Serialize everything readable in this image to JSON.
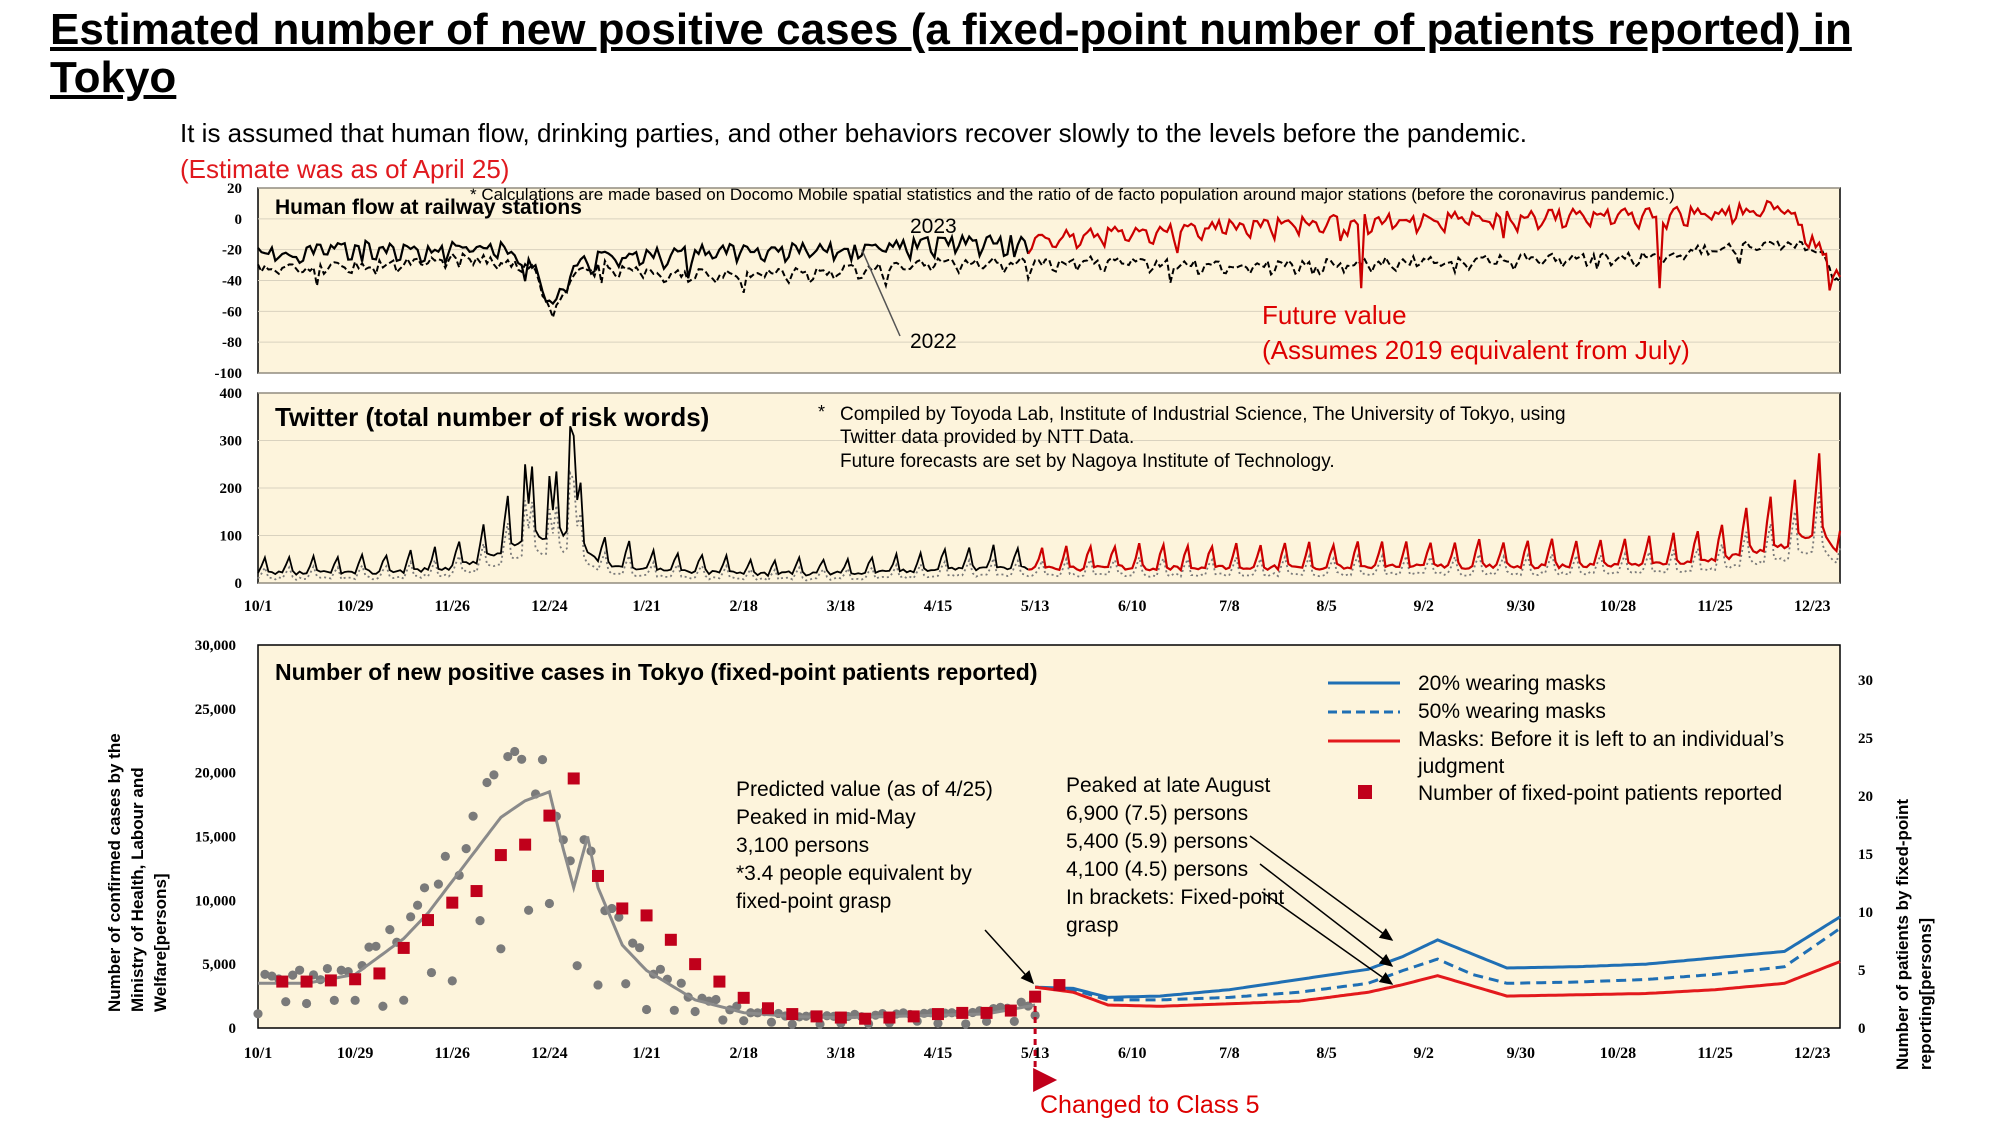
{
  "title": "Estimated number of new positive cases (a fixed-point number of patients reported) in Tokyo",
  "subtitle": "It is assumed that human flow, drinking parties, and other behaviors recover slowly to the levels before the pandemic.",
  "estimate_note": "(Estimate was as of April 25)",
  "colors": {
    "panel_bg": "#fdf4dc",
    "past": "#000000",
    "future": "#cc0000",
    "blue": "#1f6fb4",
    "red_line": "#e3191c",
    "marker": "#c0001b",
    "dots": "#7a7a7a"
  },
  "x_ticks": [
    "10/1",
    "10/29",
    "11/26",
    "12/24",
    "1/21",
    "2/18",
    "3/18",
    "4/15",
    "5/13",
    "6/10",
    "7/8",
    "8/5",
    "9/2",
    "9/30",
    "10/28",
    "11/25",
    "12/23"
  ],
  "chart_data": [
    {
      "type": "line",
      "id": "human_flow",
      "label": "Human flow at railway stations",
      "note": "*  Calculations are made based on Docomo Mobile spatial statistics and the ratio of de facto population around major stations (before the coronavirus pandemic.)",
      "annotations": {
        "y2023": "2023",
        "y2022": "2022",
        "future_line1": "Future value",
        "future_line2": "(Assumes 2019 equivalent from July)"
      },
      "ylim": [
        -100,
        20
      ],
      "y_ticks": [
        "20",
        "0",
        "-20",
        "-40",
        "-60",
        "-80",
        "-100"
      ],
      "series": [
        {
          "name": "2023",
          "days": [
            0,
            10,
            20,
            30,
            40,
            50,
            60,
            70,
            80,
            85,
            90,
            95,
            100,
            120,
            140,
            160,
            180,
            200,
            220,
            240,
            260,
            280,
            300,
            320,
            340,
            360,
            380,
            400,
            420,
            440,
            456
          ],
          "values": [
            -20,
            -22,
            -18,
            -17,
            -20,
            -21,
            -15,
            -18,
            -30,
            -58,
            -34,
            -26,
            -23,
            -22,
            -18,
            -19,
            -17,
            -14,
            -14,
            -9,
            -7,
            -4,
            -2,
            0,
            1,
            2,
            3,
            4,
            5,
            9,
            -35
          ]
        },
        {
          "name": "2022",
          "days": [
            0,
            30,
            60,
            80,
            85,
            90,
            100,
            120,
            160,
            200,
            240,
            280,
            320,
            360,
            400,
            440,
            450,
            456
          ],
          "values": [
            -32,
            -30,
            -24,
            -32,
            -62,
            -35,
            -30,
            -36,
            -34,
            -28,
            -27,
            -30,
            -28,
            -26,
            -24,
            -14,
            -20,
            -40
          ]
        }
      ]
    },
    {
      "type": "line",
      "id": "twitter",
      "label": "Twitter (total number of risk words)",
      "note_marker": "*",
      "note_lines": [
        "Compiled by Toyoda Lab, Institute of Industrial Science, The University of Tokyo, using",
        "Twitter data provided by NTT Data.",
        "Future forecasts are set by Nagoya Institute of Technology."
      ],
      "ylim": [
        0,
        400
      ],
      "y_ticks": [
        "400",
        "300",
        "200",
        "100",
        "0"
      ],
      "series": [
        {
          "name": "base",
          "days": [
            0,
            30,
            55,
            65,
            75,
            80,
            85,
            90,
            95,
            100,
            120,
            150,
            180,
            200,
            220,
            300,
            380,
            400,
            420,
            430,
            440,
            450,
            456
          ],
          "values": [
            35,
            40,
            55,
            90,
            150,
            180,
            160,
            210,
            120,
            70,
            45,
            35,
            40,
            55,
            55,
            60,
            65,
            70,
            85,
            120,
            140,
            200,
            110
          ]
        }
      ]
    },
    {
      "type": "line",
      "id": "cases",
      "label": "Number of new positive cases in Tokyo (fixed-point patients reported)",
      "ylabel": "Number of confirmed cases by the Ministry of Health, Labour and Welfare[persons]",
      "y2label": "Number of patients by fixed-point reporting[persons]",
      "ylim": [
        0,
        30000
      ],
      "y_ticks": [
        "30,000",
        "25,000",
        "20,000",
        "15,000",
        "10,000",
        "5,000",
        "0"
      ],
      "y2lim": [
        0,
        33
      ],
      "y2_ticks": [
        "30",
        "25",
        "20",
        "15",
        "10",
        "5",
        "0"
      ],
      "legend": [
        "20% wearing masks",
        "50% wearing masks",
        "Masks: Before it is left to an individual’s",
        "judgment",
        "Number of fixed-point patients reported"
      ],
      "annotation_predicted": [
        "Predicted value (as of 4/25)",
        "Peaked in mid-May",
        "3,100 persons",
        "*3.4 people equivalent by",
        "fixed-point grasp"
      ],
      "annotation_peak": [
        "Peaked at late August",
        "6,900 (7.5) persons",
        "5,400 (5.9) persons",
        "4,100 (4.5) persons",
        "In brackets: Fixed-point",
        "grasp"
      ],
      "class5_label": "Changed to Class 5",
      "class5_day": 224,
      "series": [
        {
          "name": "Observed (smoothed)",
          "days": [
            0,
            14,
            28,
            42,
            49,
            56,
            63,
            70,
            77,
            84,
            88,
            91,
            95,
            98,
            105,
            112,
            126,
            140,
            154,
            168,
            182,
            196,
            210,
            224
          ],
          "values": [
            3500,
            3500,
            4200,
            7000,
            9000,
            11500,
            14000,
            16500,
            17800,
            18500,
            14000,
            11000,
            15000,
            11000,
            6500,
            4500,
            2200,
            1200,
            900,
            800,
            900,
            1000,
            1100,
            1800
          ]
        },
        {
          "name": "20% wearing masks",
          "days": [
            224,
            235,
            245,
            260,
            280,
            300,
            320,
            330,
            340,
            350,
            360,
            380,
            400,
            420,
            440,
            456
          ],
          "values": [
            3200,
            3100,
            2400,
            2500,
            3000,
            3800,
            4600,
            5600,
            6900,
            5800,
            4700,
            4800,
            5000,
            5500,
            6000,
            8700
          ]
        },
        {
          "name": "50% wearing masks",
          "days": [
            224,
            235,
            245,
            260,
            280,
            300,
            320,
            330,
            340,
            350,
            360,
            380,
            400,
            420,
            440,
            456
          ],
          "values": [
            3200,
            3000,
            2200,
            2200,
            2400,
            2800,
            3500,
            4500,
            5400,
            4200,
            3500,
            3600,
            3800,
            4200,
            4800,
            7800
          ]
        },
        {
          "name": "Masks: Before it is left to an individual’s judgment",
          "days": [
            224,
            235,
            245,
            260,
            280,
            300,
            320,
            330,
            340,
            350,
            360,
            380,
            400,
            420,
            440,
            456
          ],
          "values": [
            3200,
            2800,
            1800,
            1700,
            1900,
            2100,
            2800,
            3400,
            4100,
            3300,
            2500,
            2600,
            2700,
            3000,
            3500,
            5200
          ]
        },
        {
          "name": "Number of fixed-point patients reported",
          "days": [
            7,
            14,
            21,
            28,
            35,
            42,
            49,
            56,
            63,
            70,
            77,
            84,
            91,
            98,
            105,
            112,
            119,
            126,
            133,
            140,
            147,
            154,
            161,
            168,
            175,
            182,
            189,
            196,
            203,
            210,
            217,
            224,
            231
          ],
          "values": [
            4.0,
            4.0,
            4.1,
            4.2,
            4.7,
            6.9,
            9.3,
            10.8,
            11.8,
            14.9,
            15.8,
            18.3,
            21.5,
            13.1,
            10.3,
            9.7,
            7.6,
            5.5,
            4.0,
            2.6,
            1.7,
            1.2,
            1.0,
            0.9,
            0.8,
            0.9,
            1.0,
            1.2,
            1.3,
            1.3,
            1.5,
            2.7,
            3.7
          ]
        }
      ]
    }
  ]
}
